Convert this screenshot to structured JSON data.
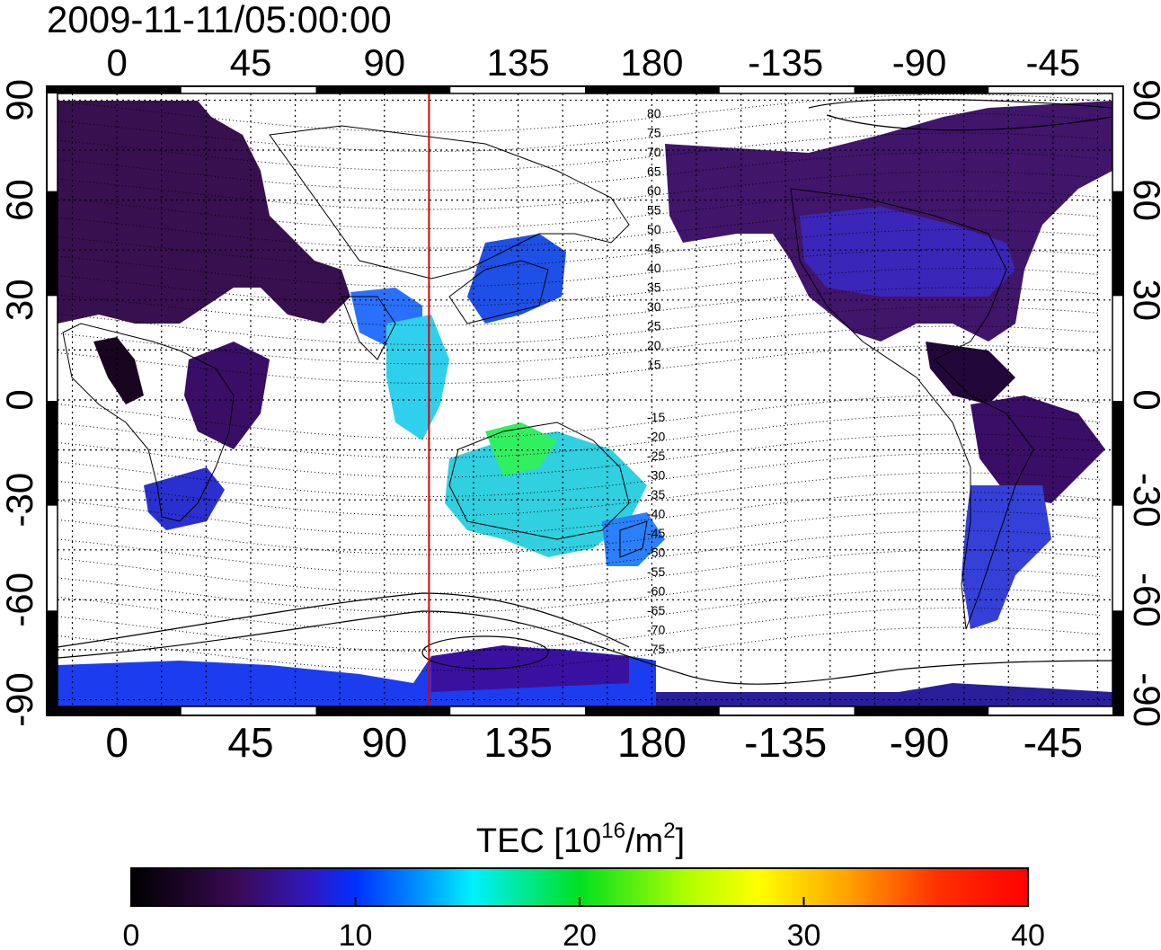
{
  "timestamp": "2009-11-11/05:00:00",
  "axes": {
    "lon_ticks": [
      0,
      45,
      90,
      135,
      180,
      -135,
      -90,
      -45
    ],
    "lat_ticks": [
      90,
      60,
      30,
      0,
      -30,
      -60,
      -90
    ],
    "lon_range": [
      -20,
      335
    ],
    "lat_range": [
      -92,
      92
    ],
    "grid": "dotted"
  },
  "sub_solar_meridian_lon": 105,
  "magnetic_latitude_labels": [
    80,
    75,
    70,
    65,
    60,
    55,
    50,
    45,
    40,
    35,
    30,
    25,
    20,
    15,
    -15,
    -20,
    -25,
    -30,
    -35,
    -40,
    -45,
    -50,
    -55,
    -60,
    -65,
    -70,
    -75
  ],
  "colorbar": {
    "title_prefix": "TEC  [10",
    "title_sup1": "16",
    "title_mid": "/m",
    "title_sup2": "2",
    "title_suffix": "]",
    "ticks": [
      0,
      10,
      20,
      30,
      40
    ],
    "range": [
      0,
      40
    ],
    "stops": [
      "#000000",
      "#3a0a55",
      "#2a18d0",
      "#0050ff",
      "#00e0ff",
      "#00e020",
      "#d8ff00",
      "#ffa000",
      "#ff2000",
      "#ff0000"
    ]
  }
}
